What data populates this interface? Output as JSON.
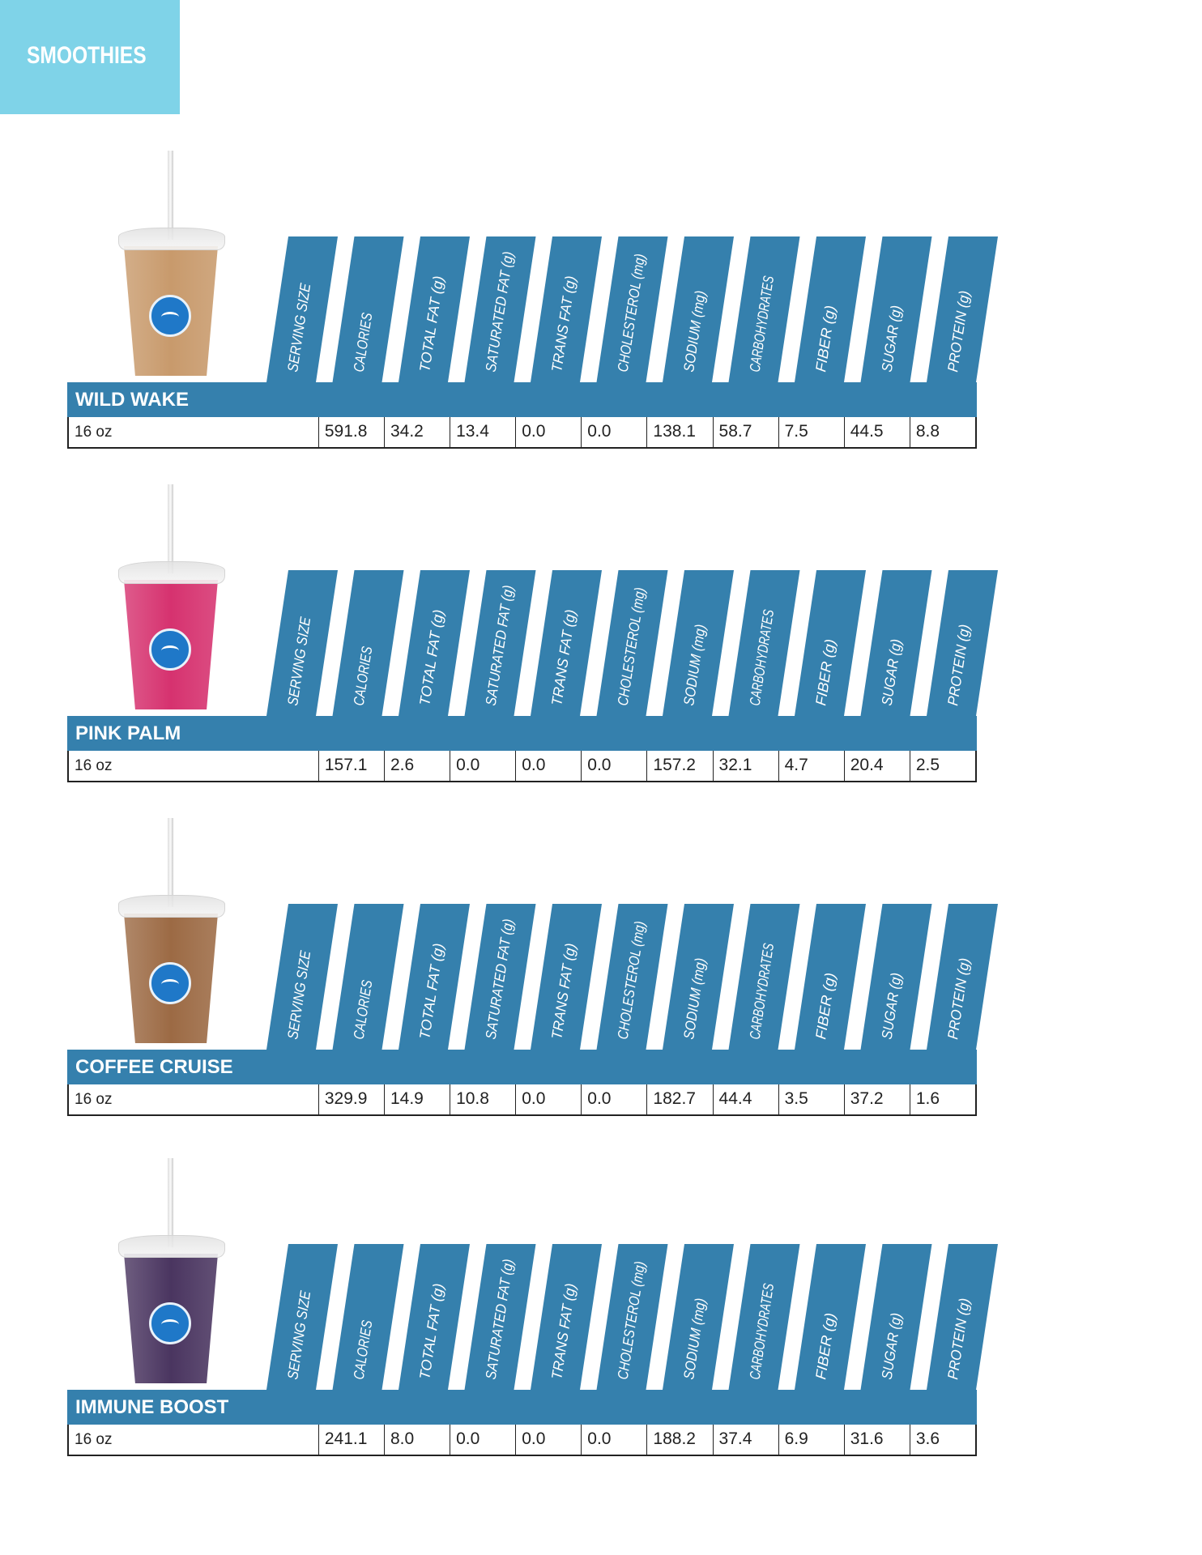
{
  "page_title": "SMOOTHIES",
  "colors": {
    "banner": "#7fd3e8",
    "header_blue": "#3580ad"
  },
  "columns": [
    "SERVING SIZE",
    "CALORIES",
    "TOTAL FAT (g)",
    "SATURATED FAT (g)",
    "TRANS FAT (g)",
    "CHOLESTEROL (mg)",
    "SODIUM (mg)",
    "CARBOHYDRATES",
    "FIBER (g)",
    "SUGAR (g)",
    "PROTEIN (g)"
  ],
  "smoothies": [
    {
      "name": "WILD WAKE",
      "serving": "16 oz",
      "cup_color": "#c89a6c",
      "values": [
        "591.8",
        "34.2",
        "13.4",
        "0.0",
        "0.0",
        "138.1",
        "58.7",
        "7.5",
        "44.5",
        "8.8"
      ]
    },
    {
      "name": "PINK PALM",
      "serving": "16 oz",
      "cup_color": "#d6326f",
      "values": [
        "157.1",
        "2.6",
        "0.0",
        "0.0",
        "0.0",
        "157.2",
        "32.1",
        "4.7",
        "20.4",
        "2.5"
      ]
    },
    {
      "name": "COFFEE CRUISE",
      "serving": "16 oz",
      "cup_color": "#9c6a44",
      "values": [
        "329.9",
        "14.9",
        "10.8",
        "0.0",
        "0.0",
        "182.7",
        "44.4",
        "3.5",
        "37.2",
        "1.6"
      ]
    },
    {
      "name": "IMMUNE BOOST",
      "serving": "16 oz",
      "cup_color": "#4a3560",
      "values": [
        "241.1",
        "8.0",
        "0.0",
        "0.0",
        "0.0",
        "188.2",
        "37.4",
        "6.9",
        "31.6",
        "3.6"
      ]
    }
  ]
}
